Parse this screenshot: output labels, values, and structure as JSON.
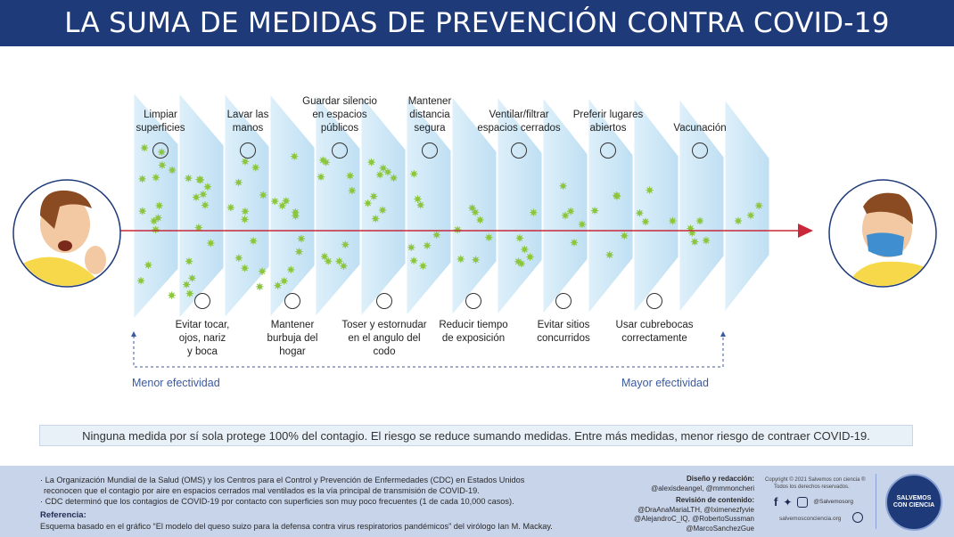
{
  "title": "LA SUMA DE MEDIDAS DE PREVENCIÓN CONTRA COVID-19",
  "top_measures": [
    {
      "label": "Limpiar\nsuperficies",
      "icon": "spray-icon"
    },
    {
      "label": "Lavar las\nmanos",
      "icon": "hand-wash-icon"
    },
    {
      "label": "Guardar silencio\nen espacios\npúblicos",
      "icon": "silence-icon"
    },
    {
      "label": "Mantener\ndistancia\nsegura",
      "icon": "distance-icon"
    },
    {
      "label": "Ventilar/filtrar\nespacios cerrados",
      "icon": "ventilation-icon"
    },
    {
      "label": "Preferir lugares\nabiertos",
      "icon": "trees-icon"
    },
    {
      "label": "Vacunación",
      "icon": "syringe-icon"
    }
  ],
  "bottom_measures": [
    {
      "label": "Evitar tocar,\nojos, nariz\ny boca",
      "icon": "no-touch-face-icon"
    },
    {
      "label": "Mantener\nburbuja del\nhogar",
      "icon": "bubble-icon"
    },
    {
      "label": "Toser y estornudar\nen el angulo del\ncodo",
      "icon": "cough-elbow-icon"
    },
    {
      "label": "Reducir tiempo\nde exposición",
      "icon": "clock-icon"
    },
    {
      "label": "Evitar sitios\nconcurridos",
      "icon": "no-crowds-icon"
    },
    {
      "label": "Usar cubrebocas\ncorrectamente",
      "icon": "mask-icon"
    }
  ],
  "effectiveness": {
    "low": "Menor efectividad",
    "high": "Mayor efectividad"
  },
  "notice": "Ninguna medida por sí sola protege 100% del contagio. El riesgo se reduce sumando medidas. Entre más medidas, menor riesgo de contraer COVID-19.",
  "footer": {
    "note1": "· La Organización Mundial de la Salud (OMS) y los Centros para el Control y Prevención de Enfermedades (CDC) en Estados Unidos",
    "note1b": "reconocen que el contagio por aire en espacios cerrados mal ventilados es la vía principal de transmisión de COVID-19.",
    "note2": "· CDC determinó que los contagios de COVID-19 por contacto con superficies son muy poco frecuentes (1 de cada 10,000 casos).",
    "ref_title": "Referencia:",
    "ref_text": "Esquema basado en el gráfico “El modelo del queso suizo para la defensa contra virus respiratorios pandémicos” del virólogo Ian M. Mackay.",
    "design_title": "Diseño y redacción:",
    "design_names": "@alexisdeangel, @mmmoncheri",
    "review_title": "Revisión de contenido:",
    "review_1": "@DraAnaMariaLTH, @Iximenezfyvie",
    "review_2": "@AlejandroC_IQ, @RobertoSussman",
    "review_3": "@MarcoSanchezGue",
    "copyright": "Copyright © 2021 Salvemos con ciencia ®",
    "rights": "Todos los derechos reservados.",
    "handle": "@Salvemosorg",
    "website": "salvemosconciencia.org",
    "logo_line1": "SALVEMOS",
    "logo_line2": "CON CIENCIA"
  },
  "colors": {
    "header": "#1e3a78",
    "arrow": "#c8283a",
    "virus": "#8cc63f",
    "slice": "#bfe0f3"
  }
}
